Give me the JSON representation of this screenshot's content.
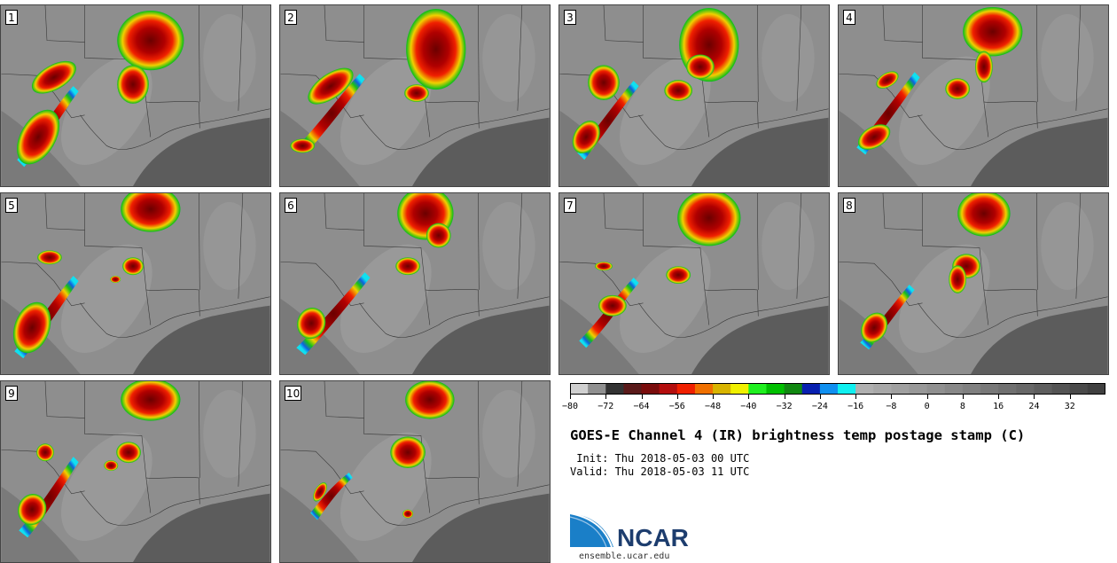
{
  "title": "GOES-E Channel 4 (IR) brightness temp postage stamp (C)",
  "init_line": " Init: Thu 2018-05-03 00 UTC",
  "valid_line": "Valid: Thu 2018-05-03 11 UTC",
  "logo": {
    "text": "NCAR",
    "url": "ensemble.ucar.edu"
  },
  "colors": {
    "logo_blue": "#1d3d6e",
    "logo_accent": "#1a7fc8"
  },
  "panels": [
    {
      "id": 1,
      "label": "1"
    },
    {
      "id": 2,
      "label": "2"
    },
    {
      "id": 3,
      "label": "3"
    },
    {
      "id": 4,
      "label": "4"
    },
    {
      "id": 5,
      "label": "5"
    },
    {
      "id": 6,
      "label": "6"
    },
    {
      "id": 7,
      "label": "7"
    },
    {
      "id": 8,
      "label": "8"
    },
    {
      "id": 9,
      "label": "9"
    },
    {
      "id": 10,
      "label": "10"
    }
  ],
  "colorbar": {
    "min": -80,
    "max": 40,
    "step": 4,
    "tick_labels": [
      "−80",
      "−72",
      "−64",
      "−56",
      "−48",
      "−40",
      "−32",
      "−24",
      "−16",
      "−8",
      "0",
      "8",
      "16",
      "24",
      "32"
    ],
    "tick_values": [
      -80,
      -72,
      -64,
      -56,
      -48,
      -40,
      -32,
      -24,
      -16,
      -8,
      0,
      8,
      16,
      24,
      32
    ],
    "colors": [
      "#d0d0d0",
      "#909090",
      "#333333",
      "#5a1a1a",
      "#7a0c0c",
      "#b40e0e",
      "#f02000",
      "#f07000",
      "#d8b400",
      "#f0f000",
      "#20f020",
      "#00c000",
      "#108810",
      "#0820b0",
      "#1090f0",
      "#10f0f0",
      "#b0b0b0",
      "#a8a8a8",
      "#a0a0a0",
      "#989898",
      "#909090",
      "#888888",
      "#808080",
      "#787878",
      "#707070",
      "#686868",
      "#5e5e5e",
      "#545454",
      "#4a4a4a",
      "#404040"
    ]
  }
}
